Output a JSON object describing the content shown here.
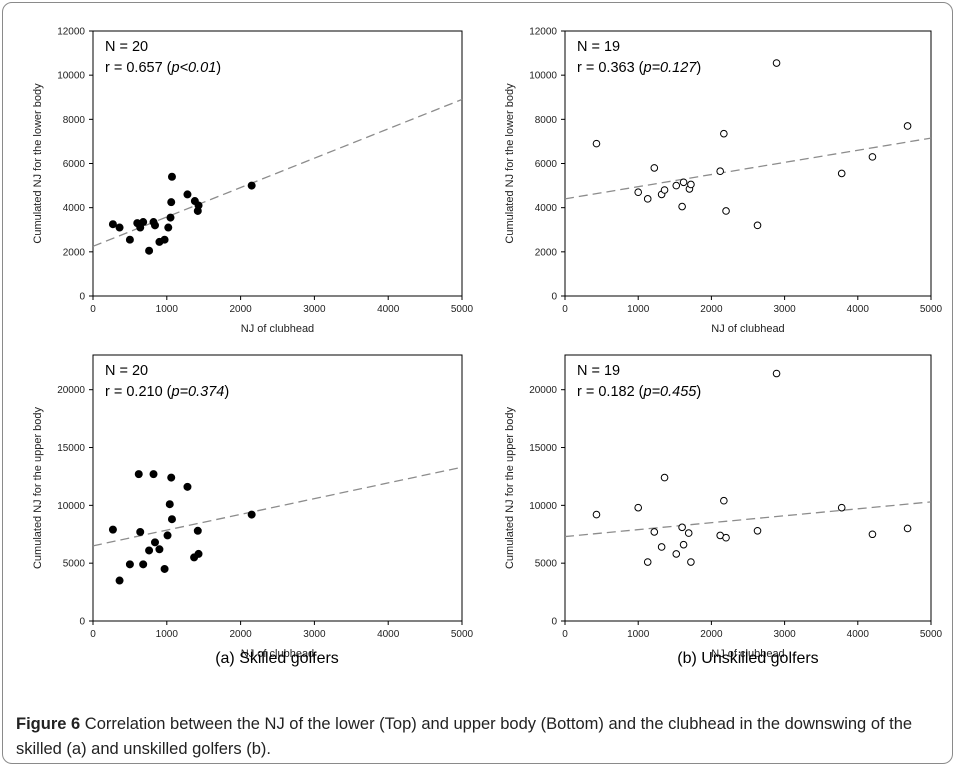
{
  "chart_data": [
    {
      "type": "scatter",
      "id": "a-lower",
      "annotation": {
        "n": "N = 20",
        "r_prefix": "r = 0.657 (",
        "p": "p<0.01",
        "r_suffix": ")"
      },
      "xlabel": "NJ of clubhead",
      "ylabel": "Cumulated NJ for the lower body",
      "xlim": [
        0,
        5000
      ],
      "ylim": [
        0,
        12000
      ],
      "xticks": [
        0,
        1000,
        2000,
        3000,
        4000,
        5000
      ],
      "yticks": [
        0,
        2000,
        4000,
        6000,
        8000,
        10000,
        12000
      ],
      "marker": "filled",
      "trendline": [
        [
          0,
          2250
        ],
        [
          5000,
          8900
        ]
      ],
      "points": [
        [
          270,
          3250
        ],
        [
          360,
          3100
        ],
        [
          500,
          2550
        ],
        [
          600,
          3300
        ],
        [
          640,
          3100
        ],
        [
          680,
          3350
        ],
        [
          760,
          2050
        ],
        [
          820,
          3350
        ],
        [
          840,
          3200
        ],
        [
          900,
          2450
        ],
        [
          970,
          2550
        ],
        [
          1020,
          3100
        ],
        [
          1050,
          3550
        ],
        [
          1060,
          4250
        ],
        [
          1070,
          5400
        ],
        [
          1280,
          4600
        ],
        [
          1380,
          4300
        ],
        [
          1420,
          3850
        ],
        [
          1430,
          4100
        ],
        [
          2150,
          5000
        ]
      ]
    },
    {
      "type": "scatter",
      "id": "b-lower",
      "annotation": {
        "n": "N = 19",
        "r_prefix": "r = 0.363 (",
        "p": "p=0.127",
        "r_suffix": ")"
      },
      "xlabel": "NJ of clubhead",
      "ylabel": "Cumulated NJ for the lower body",
      "xlim": [
        0,
        5000
      ],
      "ylim": [
        0,
        12000
      ],
      "xticks": [
        0,
        1000,
        2000,
        3000,
        4000,
        5000
      ],
      "yticks": [
        0,
        2000,
        4000,
        6000,
        8000,
        10000,
        12000
      ],
      "marker": "open",
      "trendline": [
        [
          0,
          4400
        ],
        [
          5000,
          7150
        ]
      ],
      "points": [
        [
          430,
          6900
        ],
        [
          1000,
          4700
        ],
        [
          1130,
          4400
        ],
        [
          1220,
          5800
        ],
        [
          1320,
          4600
        ],
        [
          1360,
          4800
        ],
        [
          1520,
          5000
        ],
        [
          1600,
          4050
        ],
        [
          1620,
          5150
        ],
        [
          1700,
          4850
        ],
        [
          1720,
          5050
        ],
        [
          2120,
          5650
        ],
        [
          2170,
          7350
        ],
        [
          2200,
          3850
        ],
        [
          2630,
          3200
        ],
        [
          2890,
          10550
        ],
        [
          3780,
          5550
        ],
        [
          4200,
          6300
        ],
        [
          4680,
          7700
        ]
      ]
    },
    {
      "type": "scatter",
      "id": "a-upper",
      "annotation": {
        "n": "N = 20",
        "r_prefix": "r = 0.210 (",
        "p": "p=0.374",
        "r_suffix": ")"
      },
      "xlabel": "NJ of clubhead",
      "ylabel": "Cumulated NJ for the upper body",
      "xlim": [
        0,
        5000
      ],
      "ylim": [
        0,
        23000
      ],
      "xticks": [
        0,
        1000,
        2000,
        3000,
        4000,
        5000
      ],
      "yticks": [
        0,
        5000,
        10000,
        15000,
        20000
      ],
      "marker": "filled",
      "trendline": [
        [
          0,
          6500
        ],
        [
          5000,
          13300
        ]
      ],
      "points": [
        [
          270,
          7900
        ],
        [
          360,
          3500
        ],
        [
          500,
          4900
        ],
        [
          620,
          12700
        ],
        [
          640,
          7700
        ],
        [
          680,
          4900
        ],
        [
          760,
          6100
        ],
        [
          820,
          12700
        ],
        [
          840,
          6800
        ],
        [
          900,
          6200
        ],
        [
          970,
          4500
        ],
        [
          1010,
          7400
        ],
        [
          1040,
          10100
        ],
        [
          1060,
          12400
        ],
        [
          1070,
          8800
        ],
        [
          1280,
          11600
        ],
        [
          1370,
          5500
        ],
        [
          1420,
          7800
        ],
        [
          1430,
          5800
        ],
        [
          2150,
          9200
        ]
      ]
    },
    {
      "type": "scatter",
      "id": "b-upper",
      "annotation": {
        "n": "N = 19",
        "r_prefix": "r = 0.182 (",
        "p": "p=0.455",
        "r_suffix": ")"
      },
      "xlabel": "NJ of clubhead",
      "ylabel": "Cumulated NJ for the upper body",
      "xlim": [
        0,
        5000
      ],
      "ylim": [
        0,
        23000
      ],
      "xticks": [
        0,
        1000,
        2000,
        3000,
        4000,
        5000
      ],
      "yticks": [
        0,
        5000,
        10000,
        15000,
        20000
      ],
      "marker": "open",
      "trendline": [
        [
          0,
          7300
        ],
        [
          5000,
          10300
        ]
      ],
      "points": [
        [
          430,
          9200
        ],
        [
          1000,
          9800
        ],
        [
          1130,
          5100
        ],
        [
          1220,
          7700
        ],
        [
          1320,
          6400
        ],
        [
          1360,
          12400
        ],
        [
          1520,
          5800
        ],
        [
          1600,
          8100
        ],
        [
          1620,
          6600
        ],
        [
          1690,
          7600
        ],
        [
          1720,
          5100
        ],
        [
          2120,
          7400
        ],
        [
          2170,
          10400
        ],
        [
          2200,
          7200
        ],
        [
          2630,
          7800
        ],
        [
          2890,
          21400
        ],
        [
          3780,
          9800
        ],
        [
          4200,
          7500
        ],
        [
          4680,
          8000
        ]
      ]
    }
  ],
  "subtitles": {
    "left": "(a) Skilled golfers",
    "right": "(b) Unskilled golfers"
  },
  "caption": {
    "label": "Figure 6",
    "text": " Correlation between the NJ of the lower (Top) and upper body (Bottom) and the clubhead in the downswing of the skilled (a) and unskilled golfers (b)."
  }
}
